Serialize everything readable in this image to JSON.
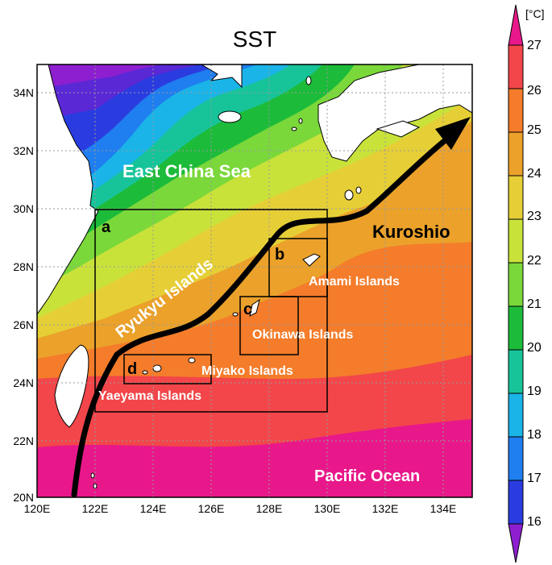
{
  "title": "SST",
  "colorbar": {
    "unit": "[°C]",
    "ticks": [
      "27",
      "26",
      "25",
      "24",
      "23",
      "22",
      "21",
      "20",
      "19",
      "18",
      "17",
      "16"
    ],
    "colors": [
      "#e8188a",
      "#f2464a",
      "#f47c2a",
      "#eba12a",
      "#e6cf36",
      "#c9e23a",
      "#7ad83a",
      "#1dbb3a",
      "#17c49a",
      "#1ab4e8",
      "#1f7ef0",
      "#2a3ce0",
      "#5b28d6",
      "#8e1fd0"
    ]
  },
  "axes": {
    "x_ticks": [
      "120E",
      "122E",
      "124E",
      "126E",
      "128E",
      "130E",
      "132E",
      "134E"
    ],
    "y_ticks": [
      "34N",
      "32N",
      "30N",
      "28N",
      "26N",
      "24N",
      "22N",
      "20N"
    ]
  },
  "labels": {
    "sea": "East China Sea",
    "ryukyu": "Ryukyu Islands",
    "kuroshio": "Kuroshio",
    "amami": "Amami Islands",
    "okinawa": "Okinawa Islands",
    "miyako": "Miyako Islands",
    "yaeyama": "Yaeyama Islands",
    "pacific": "Pacific Ocean"
  },
  "boxes": {
    "a": "a",
    "b": "b",
    "c": "c",
    "d": "d"
  }
}
